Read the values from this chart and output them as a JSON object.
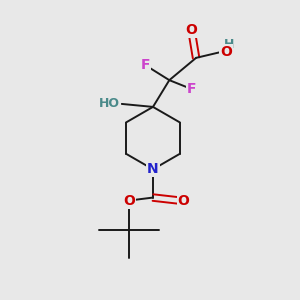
{
  "bg_color": "#e8e8e8",
  "bond_color": "#1a1a1a",
  "O_color": "#cc0000",
  "N_color": "#2222cc",
  "F_color": "#cc44cc",
  "H_color": "#4a8a8a",
  "fig_w": 3.0,
  "fig_h": 3.0,
  "dpi": 100,
  "xlim": [
    0,
    10
  ],
  "ylim": [
    0,
    10
  ]
}
